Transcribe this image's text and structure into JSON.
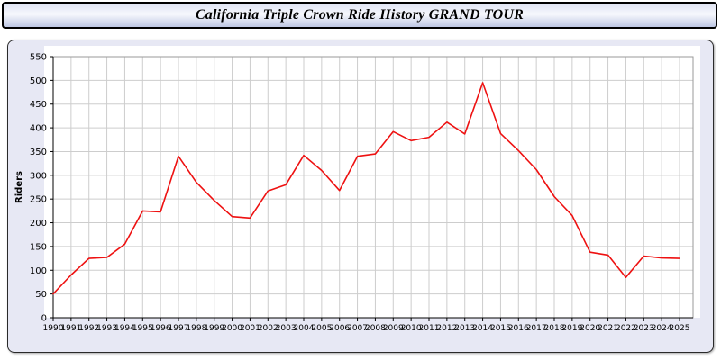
{
  "chart_data": {
    "type": "line",
    "title": "California Triple Crown Ride History GRAND TOUR",
    "ylabel": "Riders",
    "xlabel": "",
    "ylim": [
      0,
      550
    ],
    "ytick_step": 50,
    "grid": true,
    "legend": "none",
    "line_color": "#ee1111",
    "x": [
      1990,
      1991,
      1992,
      1993,
      1994,
      1995,
      1996,
      1997,
      1998,
      1999,
      2000,
      2001,
      2002,
      2003,
      2004,
      2005,
      2006,
      2007,
      2008,
      2009,
      2010,
      2011,
      2012,
      2013,
      2014,
      2015,
      2016,
      2017,
      2018,
      2019,
      2020,
      2021,
      2022,
      2023,
      2024,
      2025
    ],
    "values": [
      50,
      90,
      125,
      127,
      155,
      225,
      223,
      340,
      285,
      247,
      213,
      210,
      267,
      280,
      342,
      310,
      268,
      340,
      345,
      392,
      373,
      380,
      412,
      387,
      495,
      388,
      352,
      312,
      255,
      215,
      138,
      132,
      85,
      130,
      126,
      125
    ]
  }
}
